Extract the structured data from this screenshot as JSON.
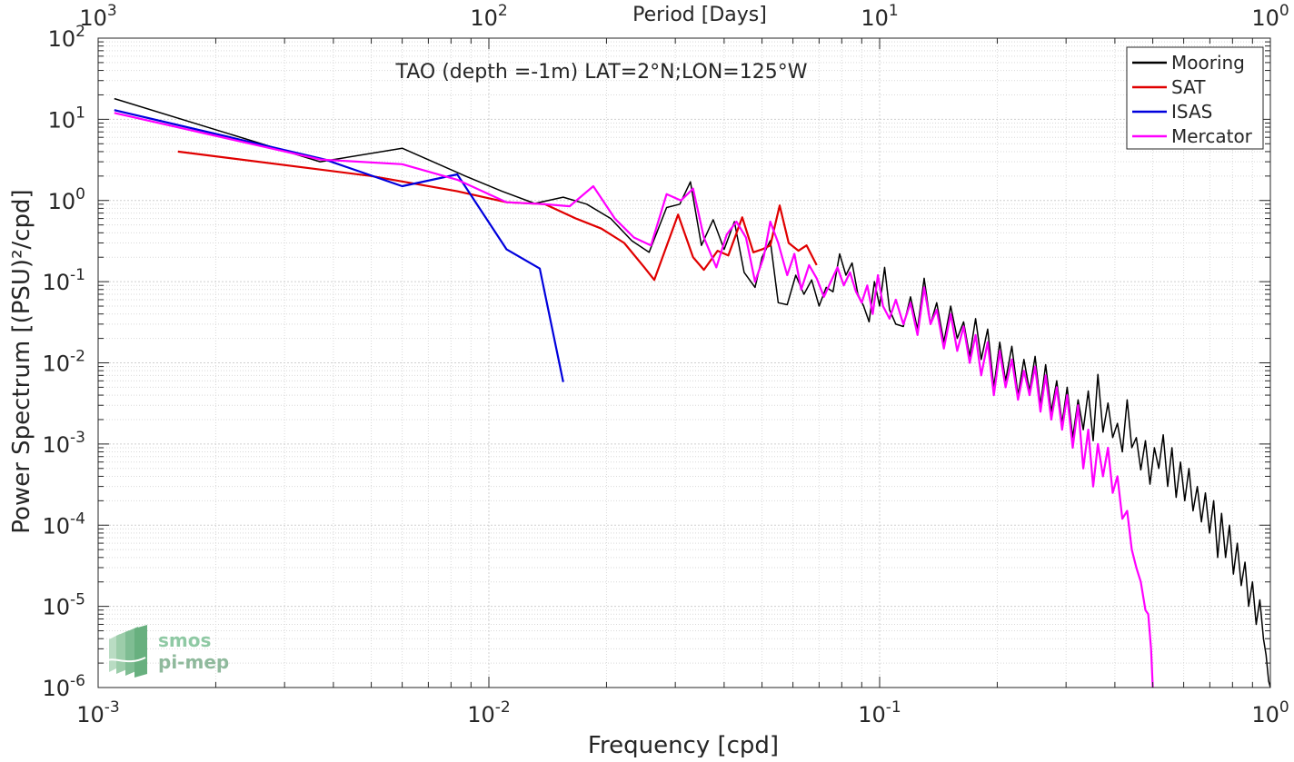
{
  "chart_data": {
    "type": "line",
    "title": "TAO (depth =-1m) LAT=2°N;LON=125°W",
    "xlabel": "Frequency [cpd]",
    "ylabel": "Power Spectrum [(PSU)²/cpd]",
    "top_axis_label": "Period [Days]",
    "x_scale": "log",
    "y_scale": "log",
    "xlim": [
      0.001,
      1
    ],
    "ylim": [
      1e-06,
      100
    ],
    "grid": true,
    "legend_position": "top-right",
    "x_ticks": [
      {
        "v": 0.001,
        "base": "10",
        "exp": "-3"
      },
      {
        "v": 0.01,
        "base": "10",
        "exp": "-2"
      },
      {
        "v": 0.1,
        "base": "10",
        "exp": "-1"
      },
      {
        "v": 1,
        "base": "10",
        "exp": "0"
      }
    ],
    "top_ticks": [
      {
        "v": 0.001,
        "base": "10",
        "exp": "3"
      },
      {
        "v": 0.01,
        "base": "10",
        "exp": "2"
      },
      {
        "v": 0.1,
        "base": "10",
        "exp": "1"
      },
      {
        "v": 1,
        "base": "10",
        "exp": "0"
      }
    ],
    "y_ticks": [
      {
        "v": 1e-06,
        "base": "10",
        "exp": "-6"
      },
      {
        "v": 1e-05,
        "base": "10",
        "exp": "-5"
      },
      {
        "v": 0.0001,
        "base": "10",
        "exp": "-4"
      },
      {
        "v": 0.001,
        "base": "10",
        "exp": "-3"
      },
      {
        "v": 0.01,
        "base": "10",
        "exp": "-2"
      },
      {
        "v": 0.1,
        "base": "10",
        "exp": "-1"
      },
      {
        "v": 1,
        "base": "10",
        "exp": "0"
      },
      {
        "v": 10,
        "base": "10",
        "exp": "1"
      },
      {
        "v": 100,
        "base": "10",
        "exp": "2"
      }
    ],
    "series": [
      {
        "name": "Mooring",
        "color": "#000000",
        "points": [
          [
            0.0011,
            18
          ],
          [
            0.0037,
            3.0
          ],
          [
            0.006,
            4.4
          ],
          [
            0.0087,
            2.0
          ],
          [
            0.0108,
            1.3
          ],
          [
            0.0131,
            0.92
          ],
          [
            0.0155,
            1.1
          ],
          [
            0.0178,
            0.9
          ],
          [
            0.0205,
            0.6
          ],
          [
            0.0232,
            0.32
          ],
          [
            0.0257,
            0.23
          ],
          [
            0.0285,
            0.82
          ],
          [
            0.0308,
            0.9
          ],
          [
            0.0328,
            1.7
          ],
          [
            0.035,
            0.28
          ],
          [
            0.0375,
            0.58
          ],
          [
            0.04,
            0.25
          ],
          [
            0.0425,
            0.55
          ],
          [
            0.045,
            0.13
          ],
          [
            0.048,
            0.085
          ],
          [
            0.05,
            0.2
          ],
          [
            0.0525,
            0.32
          ],
          [
            0.055,
            0.055
          ],
          [
            0.058,
            0.052
          ],
          [
            0.061,
            0.12
          ],
          [
            0.064,
            0.07
          ],
          [
            0.067,
            0.105
          ],
          [
            0.07,
            0.05
          ],
          [
            0.073,
            0.085
          ],
          [
            0.076,
            0.075
          ],
          [
            0.079,
            0.22
          ],
          [
            0.082,
            0.12
          ],
          [
            0.085,
            0.17
          ],
          [
            0.088,
            0.07
          ],
          [
            0.091,
            0.05
          ],
          [
            0.094,
            0.032
          ],
          [
            0.097,
            0.1
          ],
          [
            0.1,
            0.05
          ],
          [
            0.103,
            0.15
          ],
          [
            0.106,
            0.045
          ],
          [
            0.11,
            0.03
          ],
          [
            0.115,
            0.028
          ],
          [
            0.12,
            0.065
          ],
          [
            0.125,
            0.026
          ],
          [
            0.13,
            0.11
          ],
          [
            0.135,
            0.03
          ],
          [
            0.14,
            0.055
          ],
          [
            0.146,
            0.018
          ],
          [
            0.152,
            0.05
          ],
          [
            0.158,
            0.02
          ],
          [
            0.164,
            0.032
          ],
          [
            0.17,
            0.012
          ],
          [
            0.176,
            0.035
          ],
          [
            0.182,
            0.011
          ],
          [
            0.189,
            0.026
          ],
          [
            0.196,
            0.005
          ],
          [
            0.203,
            0.018
          ],
          [
            0.21,
            0.006
          ],
          [
            0.218,
            0.016
          ],
          [
            0.226,
            0.004
          ],
          [
            0.234,
            0.011
          ],
          [
            0.242,
            0.0045
          ],
          [
            0.25,
            0.012
          ],
          [
            0.258,
            0.003
          ],
          [
            0.266,
            0.0095
          ],
          [
            0.275,
            0.0025
          ],
          [
            0.284,
            0.006
          ],
          [
            0.293,
            0.0018
          ],
          [
            0.302,
            0.005
          ],
          [
            0.312,
            0.0012
          ],
          [
            0.322,
            0.0035
          ],
          [
            0.332,
            0.0015
          ],
          [
            0.342,
            0.0045
          ],
          [
            0.352,
            0.0011
          ],
          [
            0.362,
            0.0072
          ],
          [
            0.373,
            0.0014
          ],
          [
            0.384,
            0.0032
          ],
          [
            0.395,
            0.0012
          ],
          [
            0.406,
            0.0018
          ],
          [
            0.418,
            0.0008
          ],
          [
            0.43,
            0.0035
          ],
          [
            0.442,
            0.0009
          ],
          [
            0.454,
            0.0012
          ],
          [
            0.466,
            0.00048
          ],
          [
            0.479,
            0.0011
          ],
          [
            0.492,
            0.00032
          ],
          [
            0.505,
            0.0009
          ],
          [
            0.518,
            0.0005
          ],
          [
            0.532,
            0.0013
          ],
          [
            0.546,
            0.0003
          ],
          [
            0.56,
            0.0009
          ],
          [
            0.574,
            0.00022
          ],
          [
            0.589,
            0.0006
          ],
          [
            0.604,
            0.0002
          ],
          [
            0.619,
            0.0005
          ],
          [
            0.634,
            0.00015
          ],
          [
            0.65,
            0.0003
          ],
          [
            0.666,
            0.00011
          ],
          [
            0.682,
            0.00025
          ],
          [
            0.699,
            8e-05
          ],
          [
            0.716,
            0.0002
          ],
          [
            0.733,
            4e-05
          ],
          [
            0.75,
            0.00014
          ],
          [
            0.768,
            4e-05
          ],
          [
            0.786,
            0.0001
          ],
          [
            0.804,
            2.5e-05
          ],
          [
            0.823,
            6e-05
          ],
          [
            0.842,
            1.8e-05
          ],
          [
            0.861,
            3.5e-05
          ],
          [
            0.88,
            1e-05
          ],
          [
            0.9,
            2e-05
          ],
          [
            0.92,
            6e-06
          ],
          [
            0.94,
            1.2e-05
          ],
          [
            0.96,
            4e-06
          ],
          [
            0.975,
            2.5e-06
          ],
          [
            0.99,
            1.2e-06
          ],
          [
            1.0,
            1e-06
          ]
        ]
      },
      {
        "name": "SAT",
        "color": "#e00000",
        "points": [
          [
            0.0016,
            4.0
          ],
          [
            0.005,
            2.0
          ],
          [
            0.0083,
            1.3
          ],
          [
            0.0111,
            0.95
          ],
          [
            0.0139,
            0.9
          ],
          [
            0.0167,
            0.6
          ],
          [
            0.0194,
            0.45
          ],
          [
            0.0222,
            0.3
          ],
          [
            0.025,
            0.15
          ],
          [
            0.0265,
            0.105
          ],
          [
            0.0305,
            0.67
          ],
          [
            0.0333,
            0.2
          ],
          [
            0.0355,
            0.14
          ],
          [
            0.0385,
            0.24
          ],
          [
            0.041,
            0.21
          ],
          [
            0.0445,
            0.62
          ],
          [
            0.0475,
            0.23
          ],
          [
            0.05,
            0.25
          ],
          [
            0.0525,
            0.28
          ],
          [
            0.0555,
            0.87
          ],
          [
            0.0585,
            0.3
          ],
          [
            0.062,
            0.24
          ],
          [
            0.065,
            0.28
          ],
          [
            0.069,
            0.16
          ]
        ]
      },
      {
        "name": "ISAS",
        "color": "#0000dd",
        "points": [
          [
            0.0011,
            13.0
          ],
          [
            0.0038,
            3.2
          ],
          [
            0.006,
            1.5
          ],
          [
            0.0083,
            2.1
          ],
          [
            0.0111,
            0.25
          ],
          [
            0.0135,
            0.145
          ],
          [
            0.0155,
            0.0058
          ]
        ]
      },
      {
        "name": "Mercator",
        "color": "#ff00ff",
        "points": [
          [
            0.0011,
            12.0
          ],
          [
            0.0037,
            3.2
          ],
          [
            0.006,
            2.8
          ],
          [
            0.0083,
            1.8
          ],
          [
            0.0111,
            0.95
          ],
          [
            0.0139,
            0.9
          ],
          [
            0.0161,
            0.85
          ],
          [
            0.0185,
            1.5
          ],
          [
            0.021,
            0.6
          ],
          [
            0.0235,
            0.35
          ],
          [
            0.026,
            0.28
          ],
          [
            0.0285,
            1.2
          ],
          [
            0.031,
            1.0
          ],
          [
            0.0333,
            1.4
          ],
          [
            0.0355,
            0.35
          ],
          [
            0.0382,
            0.15
          ],
          [
            0.0406,
            0.38
          ],
          [
            0.043,
            0.55
          ],
          [
            0.0455,
            0.35
          ],
          [
            0.048,
            0.1
          ],
          [
            0.0505,
            0.2
          ],
          [
            0.0525,
            0.55
          ],
          [
            0.055,
            0.3
          ],
          [
            0.058,
            0.12
          ],
          [
            0.0605,
            0.22
          ],
          [
            0.063,
            0.08
          ],
          [
            0.066,
            0.16
          ],
          [
            0.069,
            0.11
          ],
          [
            0.072,
            0.065
          ],
          [
            0.075,
            0.1
          ],
          [
            0.078,
            0.15
          ],
          [
            0.081,
            0.09
          ],
          [
            0.084,
            0.13
          ],
          [
            0.087,
            0.075
          ],
          [
            0.09,
            0.055
          ],
          [
            0.093,
            0.09
          ],
          [
            0.096,
            0.04
          ],
          [
            0.099,
            0.12
          ],
          [
            0.102,
            0.05
          ],
          [
            0.106,
            0.035
          ],
          [
            0.11,
            0.06
          ],
          [
            0.115,
            0.03
          ],
          [
            0.12,
            0.055
          ],
          [
            0.125,
            0.022
          ],
          [
            0.13,
            0.085
          ],
          [
            0.135,
            0.03
          ],
          [
            0.14,
            0.045
          ],
          [
            0.146,
            0.015
          ],
          [
            0.152,
            0.04
          ],
          [
            0.158,
            0.014
          ],
          [
            0.164,
            0.028
          ],
          [
            0.17,
            0.01
          ],
          [
            0.176,
            0.022
          ],
          [
            0.182,
            0.007
          ],
          [
            0.189,
            0.018
          ],
          [
            0.196,
            0.004
          ],
          [
            0.203,
            0.014
          ],
          [
            0.21,
            0.005
          ],
          [
            0.218,
            0.011
          ],
          [
            0.226,
            0.0035
          ],
          [
            0.234,
            0.008
          ],
          [
            0.242,
            0.004
          ],
          [
            0.25,
            0.009
          ],
          [
            0.258,
            0.0025
          ],
          [
            0.266,
            0.007
          ],
          [
            0.275,
            0.002
          ],
          [
            0.284,
            0.005
          ],
          [
            0.293,
            0.0015
          ],
          [
            0.302,
            0.004
          ],
          [
            0.312,
            0.0009
          ],
          [
            0.322,
            0.003
          ],
          [
            0.332,
            0.0005
          ],
          [
            0.342,
            0.0015
          ],
          [
            0.352,
            0.0003
          ],
          [
            0.362,
            0.001
          ],
          [
            0.373,
            0.0004
          ],
          [
            0.384,
            0.0009
          ],
          [
            0.395,
            0.00025
          ],
          [
            0.406,
            0.0004
          ],
          [
            0.418,
            0.00012
          ],
          [
            0.43,
            0.00015
          ],
          [
            0.442,
            5e-05
          ],
          [
            0.454,
            3e-05
          ],
          [
            0.466,
            2e-05
          ],
          [
            0.479,
            9e-06
          ],
          [
            0.487,
            8e-06
          ],
          [
            0.495,
            3e-06
          ],
          [
            0.5,
            1e-06
          ]
        ]
      }
    ]
  },
  "watermark": {
    "line1": "smos",
    "line2": "pi-mep"
  }
}
